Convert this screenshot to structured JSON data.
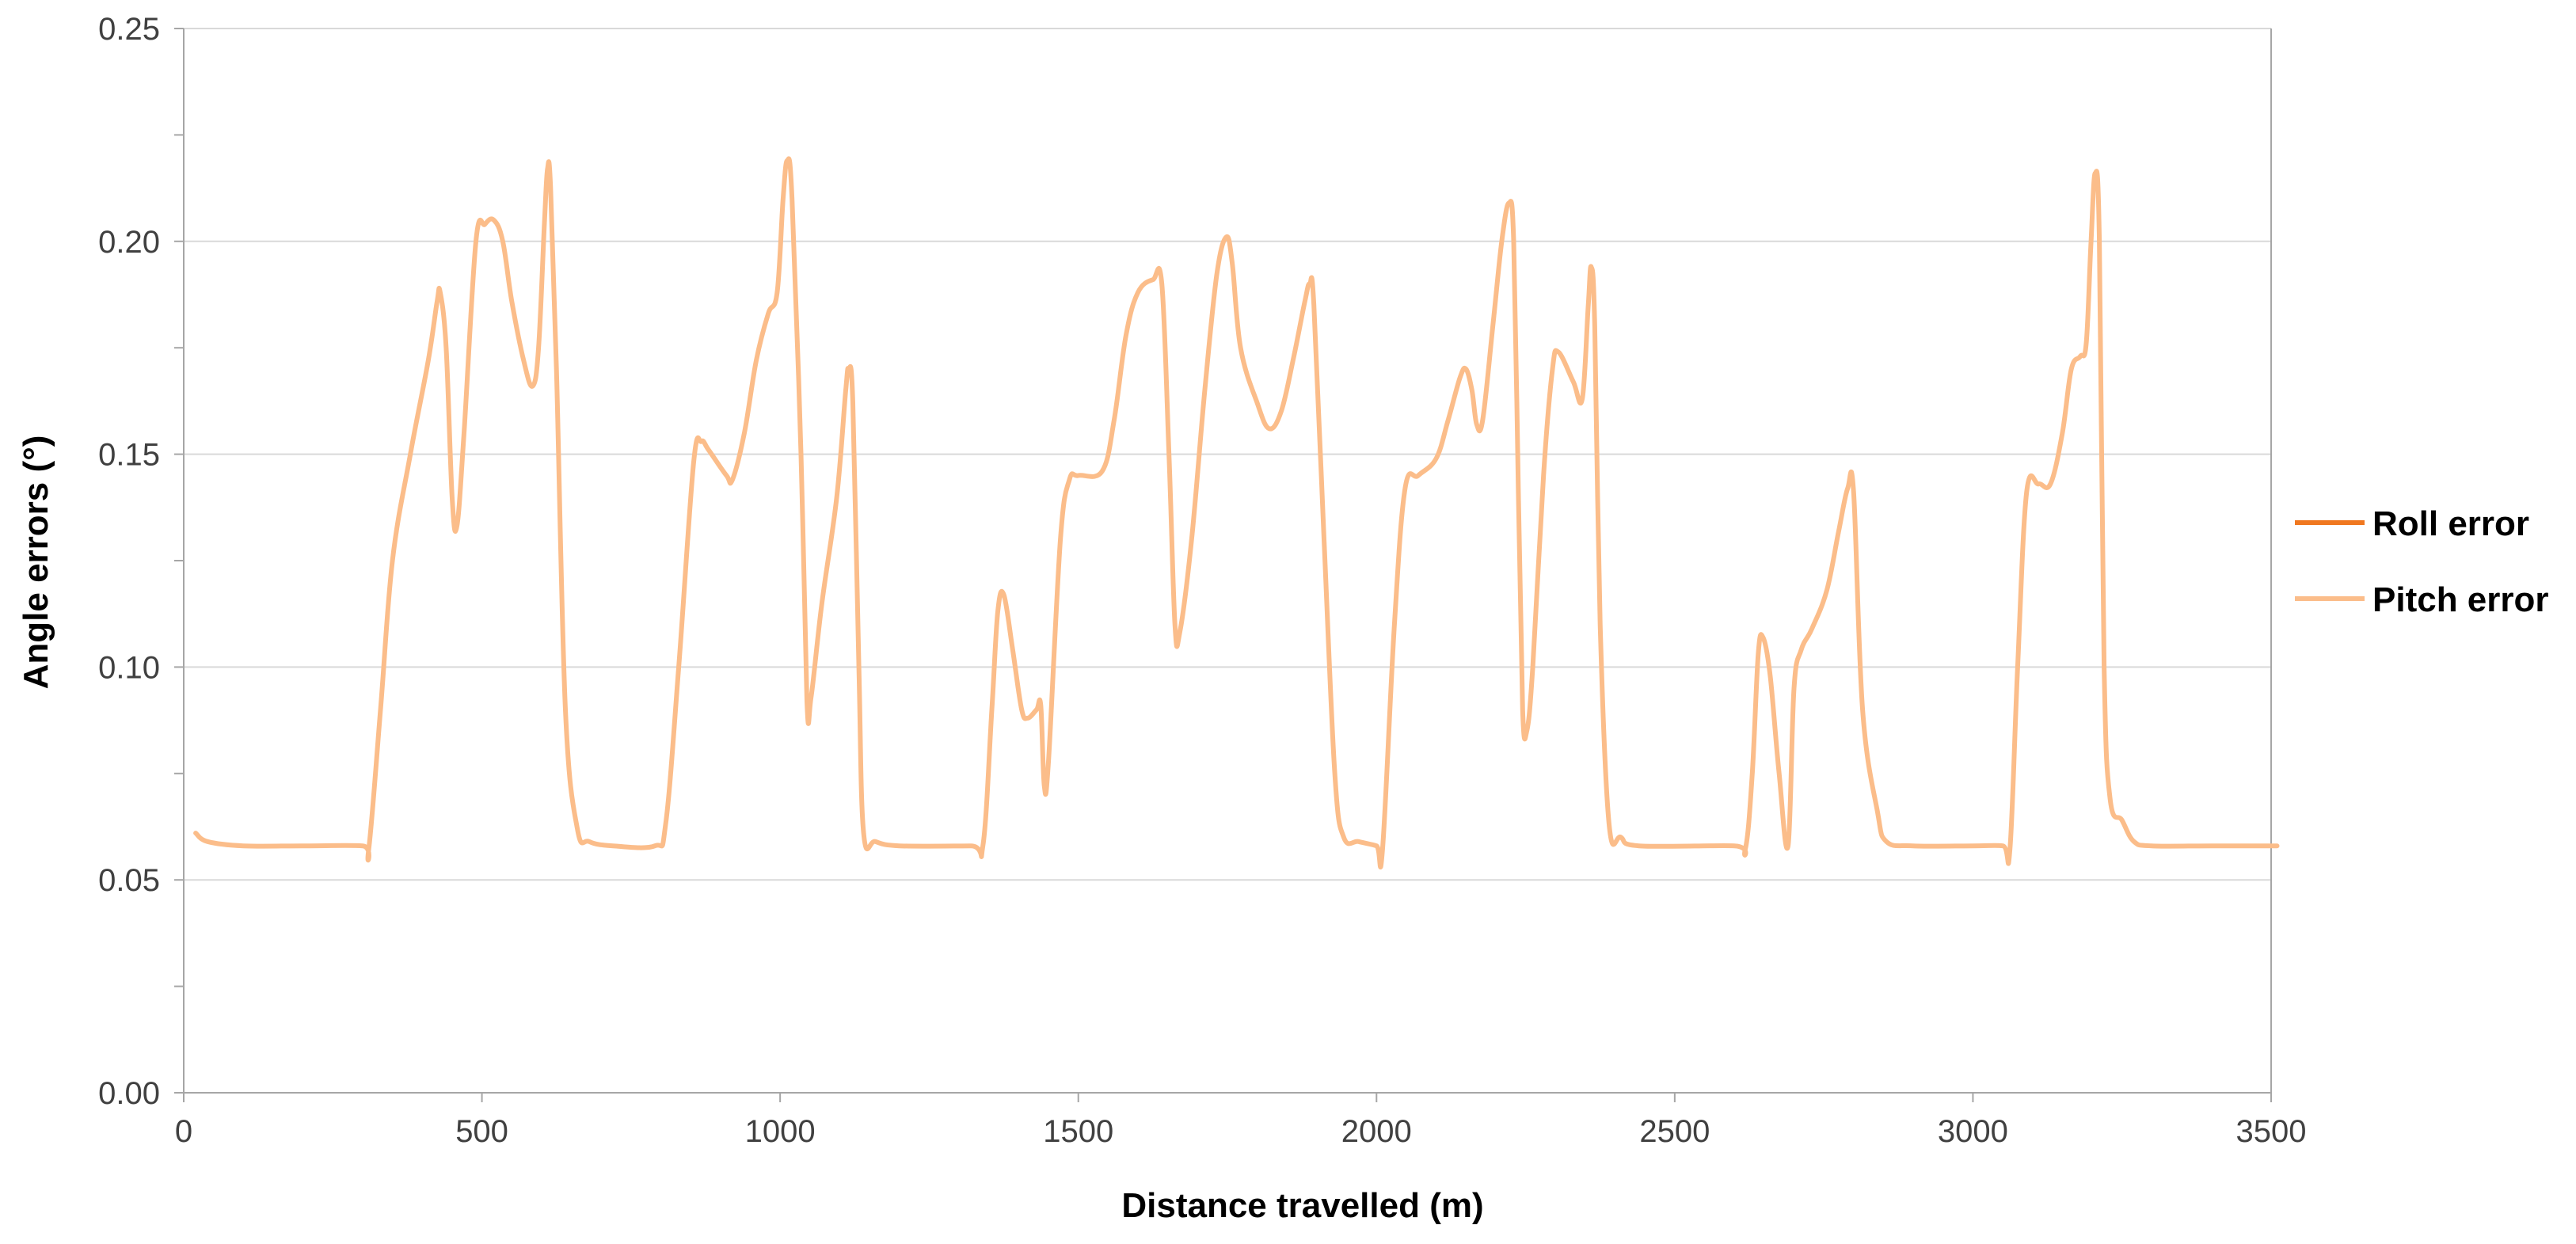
{
  "chart_data": {
    "type": "line",
    "title": "",
    "xlabel": "Distance travelled (m)",
    "ylabel": "Angle errors (°)",
    "xlim": [
      0,
      3500
    ],
    "ylim": [
      0,
      0.25
    ],
    "x_ticks": [
      "0",
      "500",
      "1000",
      "1500",
      "2000",
      "2500",
      "3000",
      "3500"
    ],
    "y_ticks": [
      "0.00",
      "0.05",
      "0.10",
      "0.15",
      "0.20",
      "0.25"
    ],
    "grid": "horizontal",
    "legend_position": "right",
    "colors": {
      "roll": "#f07820",
      "pitch": "#fbbd8a",
      "grid": "#d9d9d9",
      "axis": "#a6a6a6"
    },
    "series": [
      {
        "name": "Roll error",
        "color": "#f07820",
        "points": []
      },
      {
        "name": "Pitch error",
        "color": "#fbbd8a",
        "points": [
          [
            20,
            0.061
          ],
          [
            40,
            0.059
          ],
          [
            100,
            0.058
          ],
          [
            200,
            0.058
          ],
          [
            300,
            0.058
          ],
          [
            310,
            0.057
          ],
          [
            330,
            0.09
          ],
          [
            350,
            0.125
          ],
          [
            380,
            0.15
          ],
          [
            410,
            0.172
          ],
          [
            425,
            0.186
          ],
          [
            430,
            0.188
          ],
          [
            440,
            0.175
          ],
          [
            450,
            0.14
          ],
          [
            458,
            0.133
          ],
          [
            470,
            0.155
          ],
          [
            490,
            0.2
          ],
          [
            505,
            0.204
          ],
          [
            520,
            0.205
          ],
          [
            535,
            0.2
          ],
          [
            550,
            0.186
          ],
          [
            570,
            0.172
          ],
          [
            585,
            0.166
          ],
          [
            595,
            0.175
          ],
          [
            605,
            0.205
          ],
          [
            610,
            0.217
          ],
          [
            615,
            0.213
          ],
          [
            625,
            0.17
          ],
          [
            640,
            0.09
          ],
          [
            660,
            0.062
          ],
          [
            680,
            0.059
          ],
          [
            720,
            0.058
          ],
          [
            790,
            0.058
          ],
          [
            808,
            0.063
          ],
          [
            830,
            0.1
          ],
          [
            855,
            0.148
          ],
          [
            868,
            0.153
          ],
          [
            880,
            0.151
          ],
          [
            910,
            0.145
          ],
          [
            920,
            0.144
          ],
          [
            940,
            0.155
          ],
          [
            960,
            0.172
          ],
          [
            980,
            0.183
          ],
          [
            995,
            0.188
          ],
          [
            1005,
            0.21
          ],
          [
            1012,
            0.219
          ],
          [
            1020,
            0.21
          ],
          [
            1035,
            0.15
          ],
          [
            1045,
            0.092
          ],
          [
            1052,
            0.093
          ],
          [
            1070,
            0.115
          ],
          [
            1095,
            0.14
          ],
          [
            1110,
            0.165
          ],
          [
            1115,
            0.17
          ],
          [
            1122,
            0.162
          ],
          [
            1132,
            0.1
          ],
          [
            1140,
            0.061
          ],
          [
            1160,
            0.059
          ],
          [
            1200,
            0.058
          ],
          [
            1320,
            0.058
          ],
          [
            1340,
            0.058
          ],
          [
            1355,
            0.09
          ],
          [
            1365,
            0.113
          ],
          [
            1375,
            0.117
          ],
          [
            1390,
            0.104
          ],
          [
            1405,
            0.09
          ],
          [
            1415,
            0.088
          ],
          [
            1430,
            0.09
          ],
          [
            1437,
            0.091
          ],
          [
            1443,
            0.072
          ],
          [
            1450,
            0.078
          ],
          [
            1470,
            0.13
          ],
          [
            1485,
            0.144
          ],
          [
            1500,
            0.145
          ],
          [
            1540,
            0.146
          ],
          [
            1560,
            0.158
          ],
          [
            1580,
            0.178
          ],
          [
            1600,
            0.188
          ],
          [
            1625,
            0.191
          ],
          [
            1640,
            0.19
          ],
          [
            1652,
            0.15
          ],
          [
            1662,
            0.11
          ],
          [
            1670,
            0.108
          ],
          [
            1690,
            0.13
          ],
          [
            1712,
            0.165
          ],
          [
            1732,
            0.192
          ],
          [
            1748,
            0.201
          ],
          [
            1758,
            0.195
          ],
          [
            1772,
            0.175
          ],
          [
            1800,
            0.162
          ],
          [
            1820,
            0.156
          ],
          [
            1840,
            0.16
          ],
          [
            1860,
            0.172
          ],
          [
            1880,
            0.186
          ],
          [
            1888,
            0.19
          ],
          [
            1895,
            0.185
          ],
          [
            1912,
            0.13
          ],
          [
            1930,
            0.075
          ],
          [
            1945,
            0.06
          ],
          [
            1970,
            0.059
          ],
          [
            2000,
            0.058
          ],
          [
            2010,
            0.057
          ],
          [
            2030,
            0.11
          ],
          [
            2048,
            0.142
          ],
          [
            2070,
            0.145
          ],
          [
            2100,
            0.149
          ],
          [
            2120,
            0.158
          ],
          [
            2140,
            0.168
          ],
          [
            2150,
            0.17
          ],
          [
            2160,
            0.165
          ],
          [
            2168,
            0.157
          ],
          [
            2178,
            0.158
          ],
          [
            2195,
            0.18
          ],
          [
            2210,
            0.2
          ],
          [
            2222,
            0.209
          ],
          [
            2230,
            0.2
          ],
          [
            2238,
            0.14
          ],
          [
            2245,
            0.09
          ],
          [
            2252,
            0.085
          ],
          [
            2262,
            0.1
          ],
          [
            2280,
            0.145
          ],
          [
            2295,
            0.17
          ],
          [
            2305,
            0.174
          ],
          [
            2330,
            0.167
          ],
          [
            2345,
            0.163
          ],
          [
            2355,
            0.185
          ],
          [
            2360,
            0.194
          ],
          [
            2366,
            0.18
          ],
          [
            2375,
            0.11
          ],
          [
            2390,
            0.063
          ],
          [
            2410,
            0.06
          ],
          [
            2440,
            0.058
          ],
          [
            2600,
            0.058
          ],
          [
            2618,
            0.057
          ],
          [
            2630,
            0.075
          ],
          [
            2640,
            0.103
          ],
          [
            2648,
            0.107
          ],
          [
            2660,
            0.098
          ],
          [
            2675,
            0.075
          ],
          [
            2690,
            0.058
          ],
          [
            2700,
            0.095
          ],
          [
            2712,
            0.104
          ],
          [
            2730,
            0.109
          ],
          [
            2755,
            0.118
          ],
          [
            2775,
            0.132
          ],
          [
            2790,
            0.142
          ],
          [
            2800,
            0.141
          ],
          [
            2815,
            0.09
          ],
          [
            2840,
            0.066
          ],
          [
            2855,
            0.059
          ],
          [
            2900,
            0.058
          ],
          [
            3000,
            0.058
          ],
          [
            3050,
            0.058
          ],
          [
            3062,
            0.057
          ],
          [
            3075,
            0.1
          ],
          [
            3090,
            0.141
          ],
          [
            3110,
            0.143
          ],
          [
            3130,
            0.143
          ],
          [
            3150,
            0.155
          ],
          [
            3165,
            0.17
          ],
          [
            3180,
            0.173
          ],
          [
            3190,
            0.176
          ],
          [
            3198,
            0.2
          ],
          [
            3205,
            0.216
          ],
          [
            3212,
            0.2
          ],
          [
            3220,
            0.1
          ],
          [
            3230,
            0.069
          ],
          [
            3250,
            0.064
          ],
          [
            3270,
            0.059
          ],
          [
            3300,
            0.058
          ],
          [
            3400,
            0.058
          ],
          [
            3510,
            0.058
          ]
        ]
      }
    ]
  }
}
